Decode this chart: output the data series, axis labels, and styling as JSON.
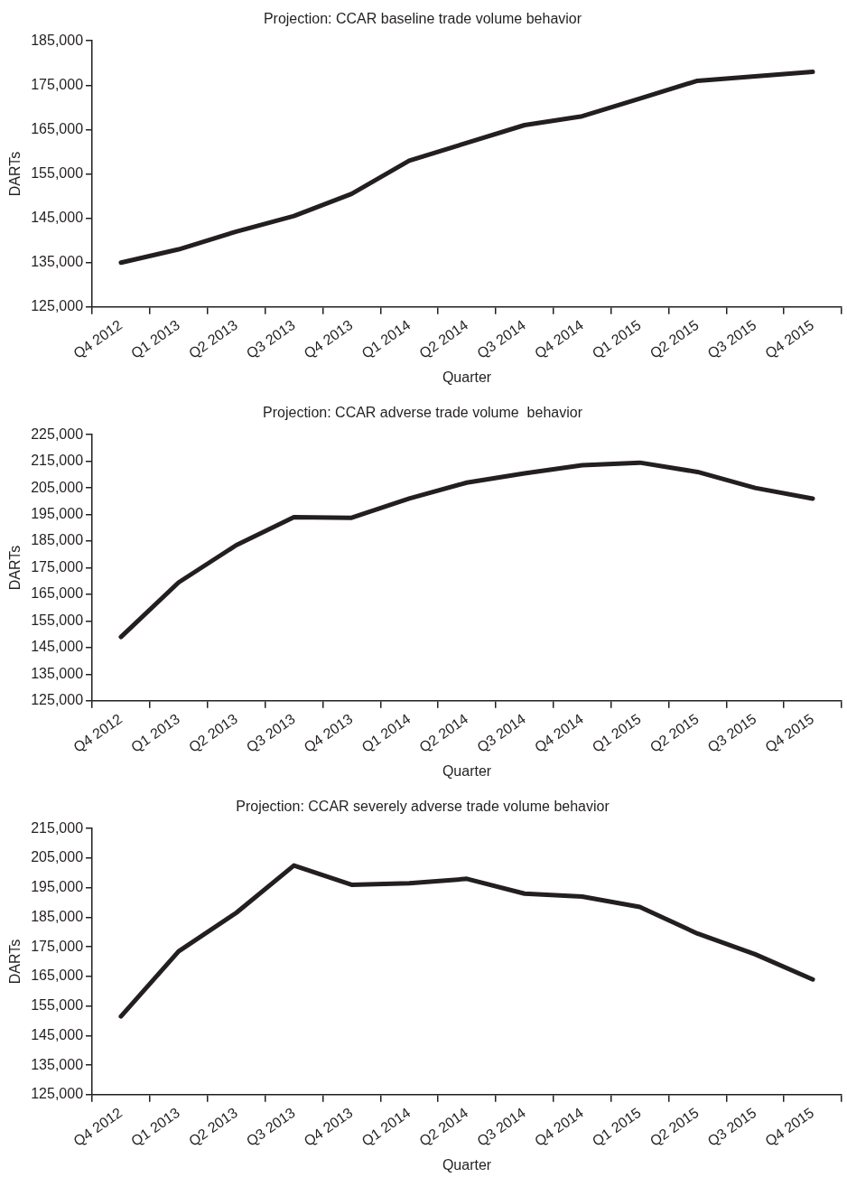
{
  "chart_data": [
    {
      "type": "line",
      "title": "Projection: CCAR baseline trade volume behavior",
      "xlabel": "Quarter",
      "ylabel": "DARTs",
      "marker": "none",
      "categories": [
        "Q4 2012",
        "Q1 2013",
        "Q2 2013",
        "Q3 2013",
        "Q4 2013",
        "Q1 2014",
        "Q2 2014",
        "Q3 2014",
        "Q4 2014",
        "Q1 2015",
        "Q2 2015",
        "Q3 2015",
        "Q4 2015"
      ],
      "series": [
        {
          "color": "#231f20",
          "values": [
            135000,
            138000,
            142000,
            145500,
            150500,
            158000,
            162000,
            166000,
            168000,
            172000,
            176000,
            177000,
            178000
          ]
        }
      ],
      "ylim": [
        125000,
        185000
      ],
      "yticks": [
        {
          "value": 125000,
          "label": "125,000"
        },
        {
          "value": 135000,
          "label": "135,000"
        },
        {
          "value": 145000,
          "label": "145,000"
        },
        {
          "value": 155000,
          "label": "155,000"
        },
        {
          "value": 165000,
          "label": "165,000"
        },
        {
          "value": 175000,
          "label": "175,000"
        },
        {
          "value": 185000,
          "label": "185,000"
        }
      ]
    },
    {
      "type": "line",
      "title": "Projection: CCAR adverse trade volume  behavior",
      "xlabel": "Quarter",
      "ylabel": "DARTs",
      "marker": "none",
      "categories": [
        "Q4 2012",
        "Q1 2013",
        "Q2 2013",
        "Q3 2013",
        "Q4 2013",
        "Q1 2014",
        "Q2 2014",
        "Q3 2014",
        "Q4 2014",
        "Q1 2015",
        "Q2 2015",
        "Q3 2015",
        "Q4 2015"
      ],
      "series": [
        {
          "color": "#231f20",
          "values": [
            149000,
            169500,
            183500,
            194000,
            193800,
            201000,
            207000,
            210500,
            213500,
            214500,
            211000,
            205000,
            201000
          ]
        }
      ],
      "ylim": [
        125000,
        225000
      ],
      "yticks": [
        {
          "value": 125000,
          "label": "125,000"
        },
        {
          "value": 135000,
          "label": "135,000"
        },
        {
          "value": 145000,
          "label": "145,000"
        },
        {
          "value": 155000,
          "label": "155,000"
        },
        {
          "value": 165000,
          "label": "165,000"
        },
        {
          "value": 175000,
          "label": "175,000"
        },
        {
          "value": 185000,
          "label": "185,000"
        },
        {
          "value": 195000,
          "label": "195,000"
        },
        {
          "value": 205000,
          "label": "205,000"
        },
        {
          "value": 215000,
          "label": "215,000"
        },
        {
          "value": 225000,
          "label": "225,000"
        }
      ]
    },
    {
      "type": "line",
      "title": "Projection: CCAR severely adverse trade volume behavior",
      "xlabel": "Quarter",
      "ylabel": "DARTs",
      "marker": "none",
      "categories": [
        "Q4 2012",
        "Q1 2013",
        "Q2 2013",
        "Q3 2013",
        "Q4 2013",
        "Q1 2014",
        "Q2 2014",
        "Q3 2014",
        "Q4 2014",
        "Q1 2015",
        "Q2 2015",
        "Q3 2015",
        "Q4 2015"
      ],
      "series": [
        {
          "color": "#231f20",
          "values": [
            151500,
            173500,
            186500,
            202500,
            196000,
            196500,
            198000,
            193000,
            192000,
            188500,
            179500,
            172500,
            164000
          ]
        }
      ],
      "ylim": [
        125000,
        215000
      ],
      "yticks": [
        {
          "value": 125000,
          "label": "125,000"
        },
        {
          "value": 135000,
          "label": "135,000"
        },
        {
          "value": 145000,
          "label": "145,000"
        },
        {
          "value": 155000,
          "label": "155,000"
        },
        {
          "value": 165000,
          "label": "165,000"
        },
        {
          "value": 175000,
          "label": "175,000"
        },
        {
          "value": 185000,
          "label": "185,000"
        },
        {
          "value": 195000,
          "label": "195,000"
        },
        {
          "value": 205000,
          "label": "205,000"
        },
        {
          "value": 215000,
          "label": "215,000"
        }
      ]
    }
  ]
}
